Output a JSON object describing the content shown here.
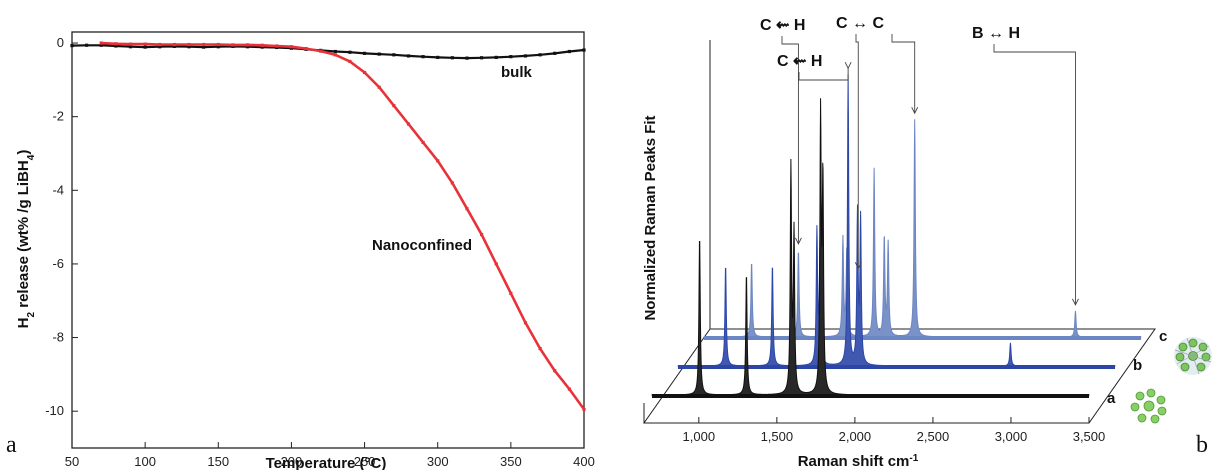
{
  "panel_labels": {
    "left": "a",
    "right": "b"
  },
  "chart_data": [
    {
      "type": "line",
      "xlabel": "Temperature (°C)",
      "ylabel_parts": [
        "H",
        "2",
        " release (wt% /g LiBH",
        "4",
        ")"
      ],
      "xlim": [
        50,
        400
      ],
      "ylim": [
        -11,
        0.3
      ],
      "xticks": [
        50,
        100,
        150,
        200,
        250,
        300,
        350,
        400
      ],
      "yticks": [
        0,
        -2,
        -4,
        -6,
        -8,
        -10
      ],
      "grid": false,
      "series": [
        {
          "name": "bulk",
          "color": "#111111",
          "x": [
            50,
            60,
            70,
            80,
            90,
            100,
            110,
            120,
            130,
            140,
            150,
            160,
            170,
            180,
            190,
            200,
            210,
            220,
            230,
            240,
            250,
            260,
            270,
            280,
            290,
            300,
            310,
            320,
            330,
            340,
            350,
            360,
            370,
            380,
            390,
            400
          ],
          "y": [
            -0.07,
            -0.06,
            -0.06,
            -0.08,
            -0.1,
            -0.11,
            -0.1,
            -0.09,
            -0.1,
            -0.11,
            -0.1,
            -0.09,
            -0.1,
            -0.11,
            -0.12,
            -0.14,
            -0.17,
            -0.2,
            -0.23,
            -0.25,
            -0.28,
            -0.3,
            -0.32,
            -0.35,
            -0.37,
            -0.39,
            -0.4,
            -0.41,
            -0.4,
            -0.39,
            -0.37,
            -0.35,
            -0.32,
            -0.28,
            -0.23,
            -0.19
          ]
        },
        {
          "name": "Nanoconfined",
          "color": "#e8323a",
          "x": [
            70,
            80,
            90,
            100,
            110,
            120,
            130,
            140,
            150,
            160,
            170,
            180,
            190,
            200,
            210,
            220,
            230,
            240,
            250,
            260,
            270,
            280,
            290,
            300,
            310,
            320,
            330,
            340,
            350,
            360,
            370,
            380,
            390,
            400
          ],
          "y": [
            0.0,
            -0.02,
            -0.03,
            -0.03,
            -0.04,
            -0.04,
            -0.04,
            -0.04,
            -0.04,
            -0.05,
            -0.05,
            -0.06,
            -0.08,
            -0.1,
            -0.15,
            -0.22,
            -0.32,
            -0.5,
            -0.8,
            -1.2,
            -1.7,
            -2.2,
            -2.7,
            -3.2,
            -3.8,
            -4.5,
            -5.2,
            -6.0,
            -6.8,
            -7.6,
            -8.3,
            -8.9,
            -9.4,
            -9.95
          ]
        }
      ]
    },
    {
      "type": "line",
      "subtype": "3d-stacked-spectra",
      "xlabel_main": "Raman shift cm",
      "xlabel_sup": "-1",
      "ylabel": "Normalized Raman Peaks Fit",
      "xlim": [
        700,
        3500
      ],
      "xticks": [
        1000,
        1500,
        2000,
        2500,
        3000,
        3500
      ],
      "xtick_labels": [
        "1,000",
        "1,500",
        "2,000",
        "2,500",
        "3,000",
        "3,500"
      ],
      "series": [
        {
          "name": "a",
          "color": "#111111",
          "peaks": [
            {
              "x": 1005,
              "h": 0.55
            },
            {
              "x": 1305,
              "h": 0.42
            },
            {
              "x": 1590,
              "h": 0.78
            },
            {
              "x": 1610,
              "h": 0.55
            },
            {
              "x": 1780,
              "h": 0.95
            },
            {
              "x": 1795,
              "h": 0.72
            }
          ]
        },
        {
          "name": "b",
          "color": "#2c46a8",
          "peaks": [
            {
              "x": 1005,
              "h": 0.35
            },
            {
              "x": 1305,
              "h": 0.35
            },
            {
              "x": 1590,
              "h": 0.46
            },
            {
              "x": 1610,
              "h": 0.42
            },
            {
              "x": 1790,
              "h": 1.0
            },
            {
              "x": 1850,
              "h": 0.52
            },
            {
              "x": 1870,
              "h": 0.5
            },
            {
              "x": 2830,
              "h": 0.08
            }
          ]
        },
        {
          "name": "c",
          "color": "#6b86c2",
          "peaks": [
            {
              "x": 1005,
              "h": 0.26
            },
            {
              "x": 1305,
              "h": 0.3
            },
            {
              "x": 1590,
              "h": 0.34
            },
            {
              "x": 1615,
              "h": 0.3
            },
            {
              "x": 1790,
              "h": 0.58
            },
            {
              "x": 1855,
              "h": 0.34
            },
            {
              "x": 1880,
              "h": 0.32
            },
            {
              "x": 2050,
              "h": 0.75
            },
            {
              "x": 3080,
              "h": 0.09
            }
          ]
        }
      ],
      "annotations": [
        {
          "id": "c-h-1",
          "left": "C",
          "right": "H",
          "symbol": "⇜"
        },
        {
          "id": "c-h-2",
          "left": "C",
          "right": "H",
          "symbol": "⇜"
        },
        {
          "id": "c-c",
          "left": "C",
          "right": "C",
          "symbol": "↔"
        },
        {
          "id": "b-h",
          "left": "B",
          "right": "H",
          "symbol": "↔"
        }
      ]
    }
  ]
}
